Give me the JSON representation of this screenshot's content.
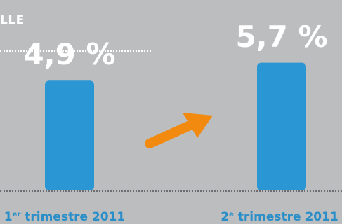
{
  "heading": "LLE",
  "colors": {
    "bar": "#2a96d3",
    "arrow": "#f18a0f",
    "background": "#bcbdbf",
    "category_text": "#2a8fc9"
  },
  "icons": {
    "trend": "arrow-up-right-icon"
  },
  "chart_data": {
    "type": "bar",
    "categories": [
      {
        "num": "1",
        "sup": "er",
        "rest": " trimestre 2011"
      },
      {
        "num": "2",
        "sup": "e",
        "rest": " trimestre 2011"
      }
    ],
    "values": [
      4.9,
      5.7
    ],
    "value_labels": [
      "4,9 %",
      "5,7 %"
    ],
    "unit": "%"
  }
}
